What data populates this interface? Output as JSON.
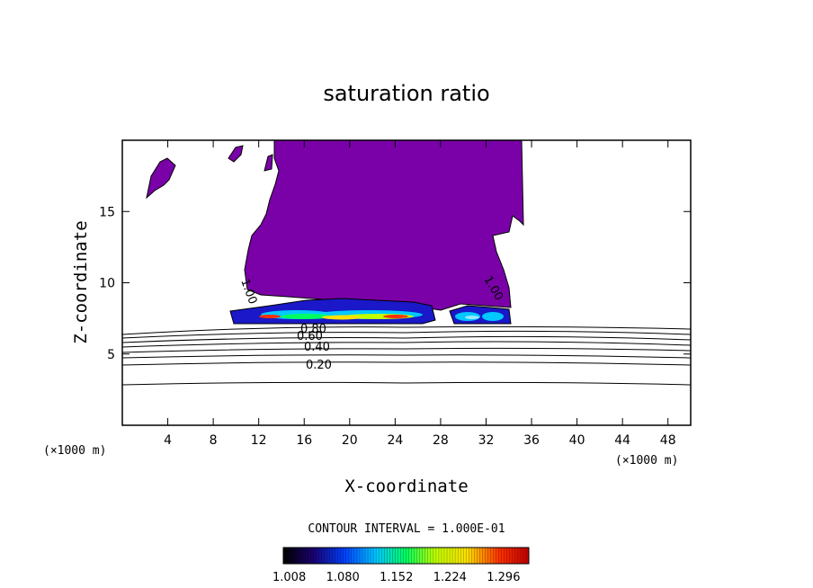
{
  "chart_data": {
    "type": "contour",
    "title": "saturation ratio",
    "xlabel": "X-coordinate",
    "ylabel": "Z-coordinate",
    "x_unit_label": "(×1000 m)",
    "x_ticks": [
      4,
      8,
      12,
      16,
      20,
      24,
      28,
      32,
      36,
      40,
      44,
      48
    ],
    "y_ticks": [
      5,
      10,
      15
    ],
    "xlim": [
      0,
      50
    ],
    "ylim": [
      0,
      20
    ],
    "contour_interval_text": "CONTOUR INTERVAL = 1.000E-01",
    "contour_levels": [
      0.1,
      0.2,
      0.3,
      0.4,
      0.5,
      0.6,
      0.7,
      0.8,
      0.9
    ],
    "contour_label_texts": [
      "0.20",
      "0.40",
      "0.60",
      "0.80",
      "1.00",
      "1.00"
    ],
    "colorbar_tick_labels": [
      "1.008",
      "1.080",
      "1.152",
      "1.224",
      "1.296"
    ],
    "colorbar_range": [
      1.0,
      1.33
    ],
    "colors": {
      "cloud_fill": "#7a00a8",
      "colorbar_stops": [
        "#000000",
        "#1a0070",
        "#0040ff",
        "#00c8ff",
        "#00ff60",
        "#c0ff00",
        "#ffe000",
        "#ff3000",
        "#c00000"
      ]
    }
  }
}
